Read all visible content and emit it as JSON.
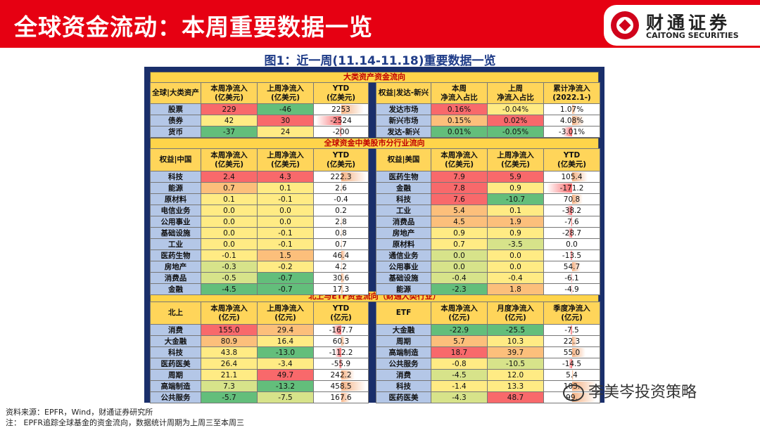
{
  "header": {
    "title": "全球资金流动：本周重要数据一览",
    "logo_cn": "财通证券",
    "logo_en": "CAITONG SECURITIES",
    "accent": "#e60012"
  },
  "figure_title": "图1：近一周(11.14-11.18)重要数据一览",
  "sections": {
    "s1": "大类资产资金流向",
    "s2": "全球资金中美股市分行业流向",
    "s3": "北上与ETF资金流向（财通大类行业）"
  },
  "t1": {
    "left_head": [
      "全球|大类资产",
      "本周净流入\n(亿美元)",
      "上周净流入\n(亿美元)",
      "YTD\n(亿美元)"
    ],
    "right_head": [
      "权益|发达-新兴",
      "本周\n净流入占比",
      "上周\n净流入占比",
      "累计净流入\n(2022.1-)"
    ],
    "left_rows": [
      {
        "name": "股票",
        "a": "229",
        "b": "-46",
        "c": "2253",
        "ca": "c-r",
        "cb": "c-g",
        "ytd": 2253,
        "max": 2600
      },
      {
        "name": "债券",
        "a": "42",
        "b": "30",
        "c": "-2524",
        "ca": "c-y",
        "cb": "c-r",
        "ytd": -2524,
        "max": 2600
      },
      {
        "name": "货币",
        "a": "-37",
        "b": "24",
        "c": "-200",
        "ca": "c-g",
        "cb": "c-y",
        "ytd": -200,
        "max": 2600
      }
    ],
    "right_rows": [
      {
        "name": "发达市场",
        "a": "0.16%",
        "b": "-0.04%",
        "c": "1.07%",
        "ca": "c-r",
        "cb": "c-y",
        "ytd": 1.07,
        "max": 9
      },
      {
        "name": "新兴市场",
        "a": "0.15%",
        "b": "0.02%",
        "c": "4.08%",
        "ca": "c-o",
        "cb": "c-r",
        "ytd": 4.08,
        "max": 9
      },
      {
        "name": "发达-新兴",
        "a": "0.01%",
        "b": "-0.05%",
        "c": "-3.01%",
        "ca": "c-g",
        "cb": "c-g",
        "ytd": -3.01,
        "max": 9
      }
    ]
  },
  "t2": {
    "left_head": [
      "权益|中国",
      "本周净流入\n(亿美元)",
      "上周净流入\n(亿美元)",
      "YTD\n(亿美元)"
    ],
    "right_head": [
      "权益|美国",
      "本周净流入\n(亿美元)",
      "上周净流入\n(亿美元)",
      "YTD\n(亿美元)"
    ],
    "left_rows": [
      {
        "name": "科技",
        "a": "2.4",
        "b": "4.3",
        "c": "222.3",
        "ca": "c-r",
        "cb": "c-r",
        "ytd": 222.3,
        "max": 230
      },
      {
        "name": "能源",
        "a": "0.7",
        "b": "0.1",
        "c": "2.6",
        "ca": "c-o",
        "cb": "c-y",
        "ytd": 2.6,
        "max": 230
      },
      {
        "name": "原材料",
        "a": "0.1",
        "b": "-0.1",
        "c": "-0.4",
        "ca": "c-y",
        "cb": "c-y",
        "ytd": -0.4,
        "max": 230
      },
      {
        "name": "电信业务",
        "a": "0.0",
        "b": "0.0",
        "c": "0.2",
        "ca": "c-y",
        "cb": "c-y",
        "ytd": 0.2,
        "max": 230
      },
      {
        "name": "公用事业",
        "a": "0.0",
        "b": "0.0",
        "c": "2.8",
        "ca": "c-y",
        "cb": "c-y",
        "ytd": 2.8,
        "max": 230
      },
      {
        "name": "基础设施",
        "a": "0.0",
        "b": "-0.1",
        "c": "0.8",
        "ca": "c-y",
        "cb": "c-y",
        "ytd": 0.8,
        "max": 230
      },
      {
        "name": "工业",
        "a": "0.0",
        "b": "-0.1",
        "c": "0.7",
        "ca": "c-y",
        "cb": "c-y",
        "ytd": 0.7,
        "max": 230
      },
      {
        "name": "医药生物",
        "a": "-0.1",
        "b": "1.5",
        "c": "46.4",
        "ca": "c-y",
        "cb": "c-o",
        "ytd": 46.4,
        "max": 230
      },
      {
        "name": "房地产",
        "a": "-0.3",
        "b": "-0.2",
        "c": "4.2",
        "ca": "c-lg",
        "cb": "c-y",
        "ytd": 4.2,
        "max": 230
      },
      {
        "name": "消费品",
        "a": "-0.5",
        "b": "-0.7",
        "c": "30.6",
        "ca": "c-lg",
        "cb": "c-g",
        "ytd": 30.6,
        "max": 230
      },
      {
        "name": "金融",
        "a": "-4.5",
        "b": "-0.7",
        "c": "17.3",
        "ca": "c-g",
        "cb": "c-g",
        "ytd": 17.3,
        "max": 230
      }
    ],
    "right_rows": [
      {
        "name": "医药生物",
        "a": "7.9",
        "b": "5.9",
        "c": "105.4",
        "ca": "c-r",
        "cb": "c-r",
        "ytd": 105.4,
        "max": 180
      },
      {
        "name": "金融",
        "a": "7.8",
        "b": "0.9",
        "c": "-171.2",
        "ca": "c-r",
        "cb": "c-y",
        "ytd": -171.2,
        "max": 180
      },
      {
        "name": "科技",
        "a": "7.6",
        "b": "-10.7",
        "c": "70.8",
        "ca": "c-r",
        "cb": "c-g",
        "ytd": 70.8,
        "max": 180
      },
      {
        "name": "工业",
        "a": "5.4",
        "b": "0.1",
        "c": "-38.2",
        "ca": "c-o",
        "cb": "c-y",
        "ytd": -38.2,
        "max": 180
      },
      {
        "name": "消费品",
        "a": "4.5",
        "b": "1.9",
        "c": "-7.6",
        "ca": "c-o",
        "cb": "c-o",
        "ytd": -7.6,
        "max": 180
      },
      {
        "name": "房地产",
        "a": "0.9",
        "b": "0.9",
        "c": "-28.7",
        "ca": "c-y",
        "cb": "c-y",
        "ytd": -28.7,
        "max": 180
      },
      {
        "name": "原材料",
        "a": "0.7",
        "b": "-3.5",
        "c": "0.0",
        "ca": "c-y",
        "cb": "c-lg",
        "ytd": 0,
        "max": 180
      },
      {
        "name": "通信业务",
        "a": "0.0",
        "b": "0.0",
        "c": "-13.5",
        "ca": "c-lg",
        "cb": "c-y",
        "ytd": -13.5,
        "max": 180
      },
      {
        "name": "公用事业",
        "a": "0.0",
        "b": "0.0",
        "c": "54.7",
        "ca": "c-lg",
        "cb": "c-y",
        "ytd": 54.7,
        "max": 180
      },
      {
        "name": "基础设施",
        "a": "-0.4",
        "b": "-0.4",
        "c": "-6.1",
        "ca": "c-lg",
        "cb": "c-y",
        "ytd": -6.1,
        "max": 180
      },
      {
        "name": "能源",
        "a": "-2.3",
        "b": "1.8",
        "c": "-4.9",
        "ca": "c-g",
        "cb": "c-o",
        "ytd": -4.9,
        "max": 180
      }
    ]
  },
  "t3": {
    "left_head": [
      "北上",
      "本周净流入\n(亿元)",
      "上周净流入\n(亿元)",
      "YTD\n(亿元)"
    ],
    "right_head": [
      "ETF",
      "本周净流入\n(亿元)",
      "月度净流入\n(亿元)",
      "季度净流入\n(亿元)"
    ],
    "left_rows": [
      {
        "name": "消费",
        "a": "155.0",
        "b": "29.4",
        "c": "-167.7",
        "ca": "c-r",
        "cb": "c-o",
        "ytd": -167.7,
        "max": 480
      },
      {
        "name": "大金融",
        "a": "80.9",
        "b": "16.4",
        "c": "60.3",
        "ca": "c-o",
        "cb": "c-y",
        "ytd": 60.3,
        "max": 480
      },
      {
        "name": "科技",
        "a": "43.8",
        "b": "-13.0",
        "c": "-112.2",
        "ca": "c-y",
        "cb": "c-g",
        "ytd": -112.2,
        "max": 480
      },
      {
        "name": "医药医美",
        "a": "26.4",
        "b": "-3.4",
        "c": "-55.9",
        "ca": "c-y",
        "cb": "c-y",
        "ytd": -55.9,
        "max": 480
      },
      {
        "name": "周期",
        "a": "21.1",
        "b": "49.7",
        "c": "242.2",
        "ca": "c-y",
        "cb": "c-r",
        "ytd": 242.2,
        "max": 480
      },
      {
        "name": "高端制造",
        "a": "7.3",
        "b": "-13.2",
        "c": "458.5",
        "ca": "c-lg",
        "cb": "c-g",
        "ytd": 458.5,
        "max": 480
      },
      {
        "name": "公共服务",
        "a": "-5.7",
        "b": "-7.5",
        "c": "167.6",
        "ca": "c-g",
        "cb": "c-lg",
        "ytd": 167.6,
        "max": 480
      }
    ],
    "right_rows": [
      {
        "name": "大金融",
        "a": "-22.9",
        "b": "-25.5",
        "c": "-7.5",
        "ca": "c-g",
        "cb": "c-g",
        "ytd": -7.5,
        "max": 110
      },
      {
        "name": "周期",
        "a": "5.7",
        "b": "10.3",
        "c": "22.3",
        "ca": "c-o",
        "cb": "c-y",
        "ytd": 22.3,
        "max": 110
      },
      {
        "name": "高端制造",
        "a": "18.7",
        "b": "39.7",
        "c": "55.0",
        "ca": "c-r",
        "cb": "c-o",
        "ytd": 55.0,
        "max": 110
      },
      {
        "name": "公共服务",
        "a": "-0.8",
        "b": "-10.5",
        "c": "-14.5",
        "ca": "c-y",
        "cb": "c-lg",
        "ytd": -14.5,
        "max": 110
      },
      {
        "name": "消费",
        "a": "-4.5",
        "b": "12.0",
        "c": "5.4",
        "ca": "c-lg",
        "cb": "c-y",
        "ytd": 5.4,
        "max": 110
      },
      {
        "name": "科技",
        "a": "-1.4",
        "b": "13.3",
        "c": "103.",
        "ca": "c-y",
        "cb": "c-y",
        "ytd": 103,
        "max": 110
      },
      {
        "name": "医药医美",
        "a": "-4.3",
        "b": "48.7",
        "c": "99.",
        "ca": "c-lg",
        "cb": "c-r",
        "ytd": 99,
        "max": 110
      }
    ]
  },
  "footer": {
    "source": "资料来源：EPFR，Wind，财通证券研究所",
    "note": "注：  EPFR追踪全球基金的资金流向，数据统计周期为上周三至本周三"
  },
  "watermark": "李美岑投资策略"
}
